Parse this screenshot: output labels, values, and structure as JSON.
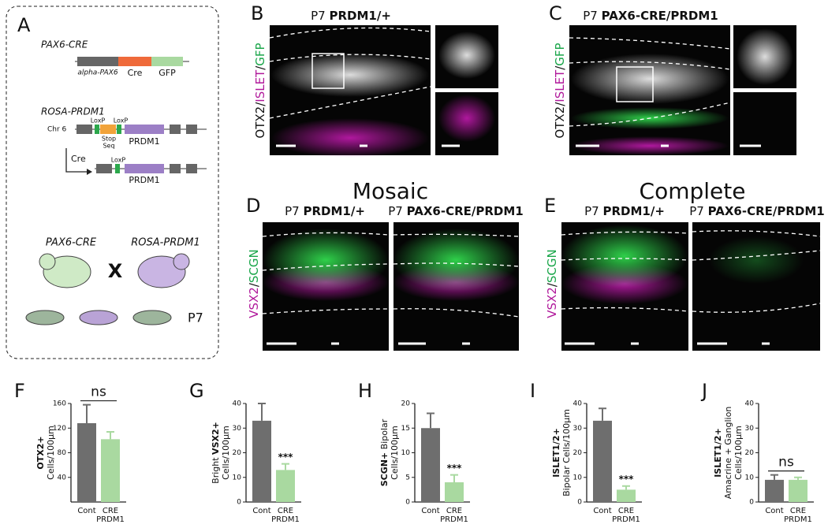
{
  "panels": {
    "A": {
      "letter": "A",
      "pax6_cre": {
        "name": "PAX6-CRE",
        "promoter": "alpha-PAX6",
        "cre": "Cre",
        "gfp": "GFP"
      },
      "rosa": {
        "name": "ROSA-PRDM1",
        "chr": "Chr 6",
        "loxp1": "LoxP",
        "loxp2": "LoxP",
        "stop": "Stop",
        "seq": "Seq",
        "gene": "PRDM1",
        "arrow": "Cre",
        "loxp3": "LoxP",
        "gene2": "PRDM1"
      },
      "cross": {
        "left": "PAX6-CRE",
        "x": "X",
        "right": "ROSA-PRDM1",
        "age": "P7"
      }
    },
    "B": {
      "letter": "B",
      "title": [
        "P7",
        "PRDM1/+"
      ],
      "stain": [
        "OTX2",
        "/",
        "ISLET",
        "/",
        "GFP"
      ]
    },
    "C": {
      "letter": "C",
      "title": [
        "P7",
        "PAX6-CRE/PRDM1"
      ],
      "stain": [
        "OTX2",
        "/",
        "ISLET",
        "/",
        "GFP"
      ]
    },
    "D": {
      "letter": "D",
      "heading": "Mosaic",
      "left": [
        "P7",
        "PRDM1/+"
      ],
      "right": [
        "P7",
        "PAX6-CRE/PRDM1"
      ],
      "stain": [
        "VSX2",
        "/",
        "SCGN"
      ]
    },
    "E": {
      "letter": "E",
      "heading": "Complete",
      "left": [
        "P7",
        "PRDM1/+"
      ],
      "right": [
        "P7",
        "PAX6-CRE/PRDM1"
      ],
      "stain": [
        "VSX2",
        "/",
        "SCGN"
      ]
    }
  },
  "chart_data": [
    {
      "type": "bar",
      "letter": "F",
      "ylabel": [
        [
          {
            "text": "OTX2+",
            "bold": true
          }
        ],
        [
          {
            "text": "Cells/100µm",
            "bold": false
          }
        ]
      ],
      "categories": [
        [
          "Cont"
        ],
        [
          "CRE",
          "PRDM1"
        ]
      ],
      "values": [
        128,
        102
      ],
      "errors": [
        30,
        12
      ],
      "colors": [
        "#6e6e6e",
        "#a9d9a0"
      ],
      "ylim": [
        0,
        160
      ],
      "yticks": [
        40,
        80,
        120,
        160
      ],
      "bracket_label": "ns"
    },
    {
      "type": "bar",
      "letter": "G",
      "ylabel": [
        [
          {
            "text": "Bright",
            "bold": false
          },
          {
            "text": "VSX2+",
            "bold": true
          }
        ],
        [
          {
            "text": "Cells/100µm",
            "bold": false
          }
        ]
      ],
      "categories": [
        [
          "Cont"
        ],
        [
          "CRE",
          "PRDM1"
        ]
      ],
      "values": [
        33,
        13
      ],
      "errors": [
        7,
        2.5
      ],
      "colors": [
        "#6e6e6e",
        "#a9d9a0"
      ],
      "ylim": [
        0,
        40
      ],
      "yticks": [
        0,
        10,
        20,
        30,
        40
      ],
      "bar_labels": [
        null,
        "***"
      ]
    },
    {
      "type": "bar",
      "letter": "H",
      "ylabel": [
        [
          {
            "text": "SCGN+",
            "bold": true
          },
          {
            "text": "Bipolar",
            "bold": false
          }
        ],
        [
          {
            "text": "Cells/100µm",
            "bold": false
          }
        ]
      ],
      "categories": [
        [
          "Cont"
        ],
        [
          "CRE",
          "PRDM1"
        ]
      ],
      "values": [
        15,
        4
      ],
      "errors": [
        3,
        1.5
      ],
      "colors": [
        "#6e6e6e",
        "#a9d9a0"
      ],
      "ylim": [
        0,
        20
      ],
      "yticks": [
        0,
        5,
        10,
        15,
        20
      ],
      "bar_labels": [
        null,
        "***"
      ]
    },
    {
      "type": "bar",
      "letter": "I",
      "ylabel": [
        [
          {
            "text": "ISLET1/2+",
            "bold": true
          }
        ],
        [
          {
            "text": "Bipolar Cells/100µm",
            "bold": false
          }
        ]
      ],
      "categories": [
        [
          "Cont"
        ],
        [
          "CRE",
          "PRDM1"
        ]
      ],
      "values": [
        33,
        5
      ],
      "errors": [
        5,
        1.5
      ],
      "colors": [
        "#6e6e6e",
        "#a9d9a0"
      ],
      "ylim": [
        0,
        40
      ],
      "yticks": [
        0,
        10,
        20,
        30,
        40
      ],
      "bar_labels": [
        null,
        "***"
      ]
    },
    {
      "type": "bar",
      "letter": "J",
      "ylabel": [
        [
          {
            "text": "ISLET1/2+",
            "bold": true
          }
        ],
        [
          {
            "text": "Amacrine + Ganglion",
            "bold": false
          }
        ],
        [
          {
            "text": "Cells/100µm",
            "bold": false
          }
        ]
      ],
      "categories": [
        [
          "Cont"
        ],
        [
          "CRE",
          "PRDM1"
        ]
      ],
      "values": [
        9,
        9
      ],
      "errors": [
        2,
        1
      ],
      "colors": [
        "#6e6e6e",
        "#a9d9a0"
      ],
      "ylim": [
        0,
        40
      ],
      "yticks": [
        0,
        10,
        20,
        30,
        40
      ],
      "bracket_label": "ns"
    }
  ]
}
